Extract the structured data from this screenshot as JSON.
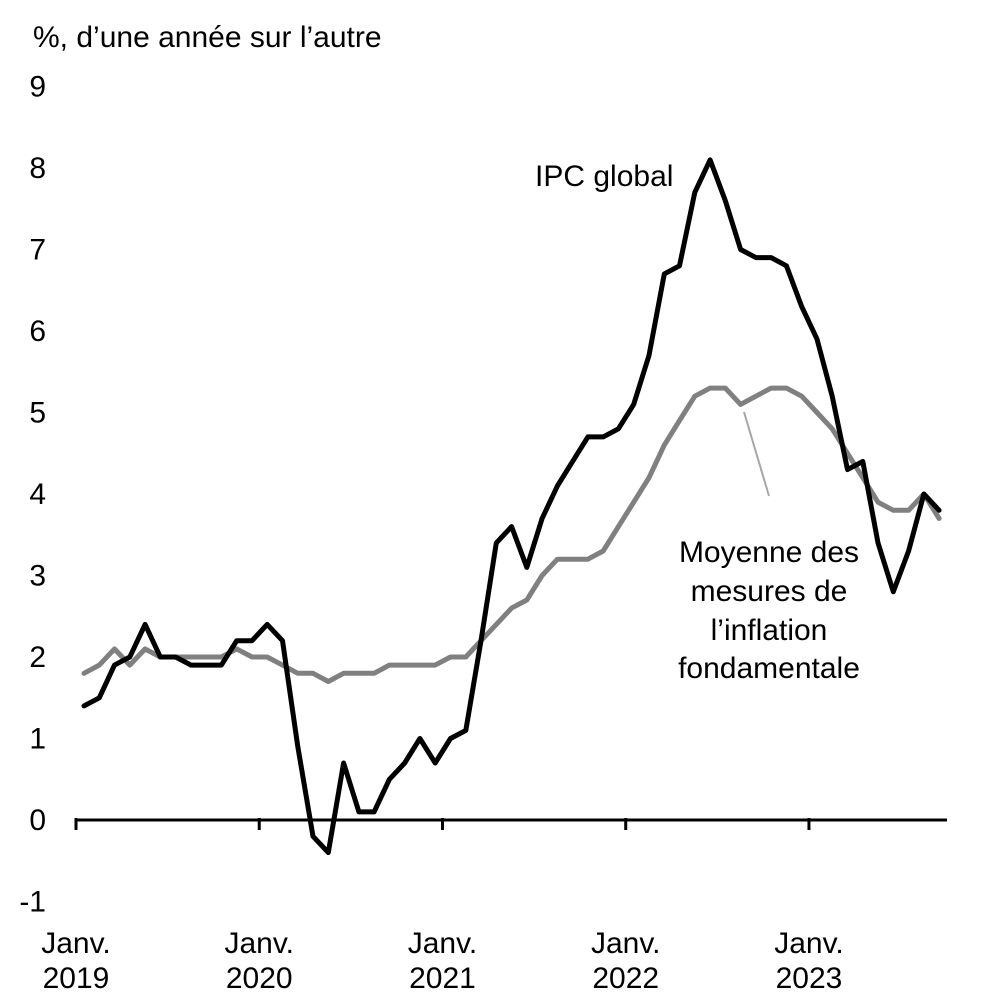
{
  "chart_data": {
    "type": "line",
    "ylabel": "%, d’une année sur l’autre",
    "ylim": [
      -1,
      9
    ],
    "yticks": [
      "9",
      "8",
      "7",
      "6",
      "5",
      "4",
      "3",
      "2",
      "1",
      "0",
      "-1"
    ],
    "x_start": "2019-01",
    "xticks": [
      {
        "line1": "Janv.",
        "line2": "2019"
      },
      {
        "line1": "Janv.",
        "line2": "2020"
      },
      {
        "line1": "Janv.",
        "line2": "2021"
      },
      {
        "line1": "Janv.",
        "line2": "2022"
      },
      {
        "line1": "Janv.",
        "line2": "2023"
      }
    ],
    "grid": false,
    "colors": {
      "cpi": "#000000",
      "core": "#808080",
      "pointer": "#a6a6a6"
    },
    "annotations": {
      "cpi": "IPC global",
      "core_lines": [
        "Moyenne des",
        "mesures de",
        "l’inflation",
        "fondamentale"
      ]
    },
    "series": [
      {
        "key": "cpi",
        "values": [
          1.4,
          1.5,
          1.9,
          2.0,
          2.4,
          2.0,
          2.0,
          1.9,
          1.9,
          1.9,
          2.2,
          2.2,
          2.4,
          2.2,
          0.9,
          -0.2,
          -0.4,
          0.7,
          0.1,
          0.1,
          0.5,
          0.7,
          1.0,
          0.7,
          1.0,
          1.1,
          2.2,
          3.4,
          3.6,
          3.1,
          3.7,
          4.1,
          4.4,
          4.7,
          4.7,
          4.8,
          5.1,
          5.7,
          6.7,
          6.8,
          7.7,
          8.1,
          7.6,
          7.0,
          6.9,
          6.9,
          6.8,
          6.3,
          5.9,
          5.2,
          4.3,
          4.4,
          3.4,
          2.8,
          3.3,
          4.0,
          3.8
        ]
      },
      {
        "key": "core",
        "values": [
          1.8,
          1.9,
          2.1,
          1.9,
          2.1,
          2.0,
          2.0,
          2.0,
          2.0,
          2.0,
          2.1,
          2.0,
          2.0,
          1.9,
          1.8,
          1.8,
          1.7,
          1.8,
          1.8,
          1.8,
          1.9,
          1.9,
          1.9,
          1.9,
          2.0,
          2.0,
          2.2,
          2.4,
          2.6,
          2.7,
          3.0,
          3.2,
          3.2,
          3.2,
          3.3,
          3.6,
          3.9,
          4.2,
          4.6,
          4.9,
          5.2,
          5.3,
          5.3,
          5.1,
          5.2,
          5.3,
          5.3,
          5.2,
          5.0,
          4.8,
          4.5,
          4.2,
          3.9,
          3.8,
          3.8,
          4.0,
          3.7
        ]
      }
    ]
  }
}
